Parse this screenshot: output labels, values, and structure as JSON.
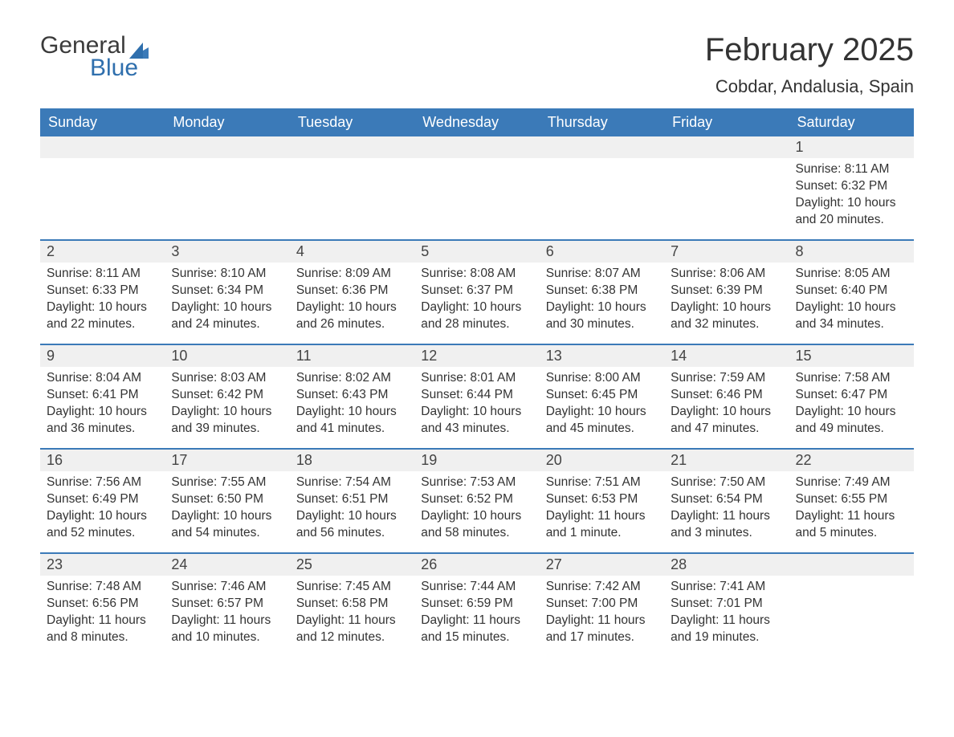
{
  "brand": {
    "word1": "General",
    "word2": "Blue",
    "text_color": "#3b3b3b",
    "accent_color": "#2f6fad"
  },
  "title": "February 2025",
  "location": "Cobdar, Andalusia, Spain",
  "colors": {
    "header_bg": "#3b7ab8",
    "header_text": "#ffffff",
    "row_border": "#3b7ab8",
    "daybar_bg": "#f0f0f0",
    "body_text": "#333333",
    "page_bg": "#ffffff"
  },
  "typography": {
    "title_fontsize": 40,
    "location_fontsize": 22,
    "weekday_fontsize": 18,
    "daynum_fontsize": 18,
    "body_fontsize": 15.5
  },
  "weekdays": [
    "Sunday",
    "Monday",
    "Tuesday",
    "Wednesday",
    "Thursday",
    "Friday",
    "Saturday"
  ],
  "weeks": [
    [
      null,
      null,
      null,
      null,
      null,
      null,
      {
        "n": "1",
        "sunrise": "Sunrise: 8:11 AM",
        "sunset": "Sunset: 6:32 PM",
        "day1": "Daylight: 10 hours",
        "day2": "and 20 minutes."
      }
    ],
    [
      {
        "n": "2",
        "sunrise": "Sunrise: 8:11 AM",
        "sunset": "Sunset: 6:33 PM",
        "day1": "Daylight: 10 hours",
        "day2": "and 22 minutes."
      },
      {
        "n": "3",
        "sunrise": "Sunrise: 8:10 AM",
        "sunset": "Sunset: 6:34 PM",
        "day1": "Daylight: 10 hours",
        "day2": "and 24 minutes."
      },
      {
        "n": "4",
        "sunrise": "Sunrise: 8:09 AM",
        "sunset": "Sunset: 6:36 PM",
        "day1": "Daylight: 10 hours",
        "day2": "and 26 minutes."
      },
      {
        "n": "5",
        "sunrise": "Sunrise: 8:08 AM",
        "sunset": "Sunset: 6:37 PM",
        "day1": "Daylight: 10 hours",
        "day2": "and 28 minutes."
      },
      {
        "n": "6",
        "sunrise": "Sunrise: 8:07 AM",
        "sunset": "Sunset: 6:38 PM",
        "day1": "Daylight: 10 hours",
        "day2": "and 30 minutes."
      },
      {
        "n": "7",
        "sunrise": "Sunrise: 8:06 AM",
        "sunset": "Sunset: 6:39 PM",
        "day1": "Daylight: 10 hours",
        "day2": "and 32 minutes."
      },
      {
        "n": "8",
        "sunrise": "Sunrise: 8:05 AM",
        "sunset": "Sunset: 6:40 PM",
        "day1": "Daylight: 10 hours",
        "day2": "and 34 minutes."
      }
    ],
    [
      {
        "n": "9",
        "sunrise": "Sunrise: 8:04 AM",
        "sunset": "Sunset: 6:41 PM",
        "day1": "Daylight: 10 hours",
        "day2": "and 36 minutes."
      },
      {
        "n": "10",
        "sunrise": "Sunrise: 8:03 AM",
        "sunset": "Sunset: 6:42 PM",
        "day1": "Daylight: 10 hours",
        "day2": "and 39 minutes."
      },
      {
        "n": "11",
        "sunrise": "Sunrise: 8:02 AM",
        "sunset": "Sunset: 6:43 PM",
        "day1": "Daylight: 10 hours",
        "day2": "and 41 minutes."
      },
      {
        "n": "12",
        "sunrise": "Sunrise: 8:01 AM",
        "sunset": "Sunset: 6:44 PM",
        "day1": "Daylight: 10 hours",
        "day2": "and 43 minutes."
      },
      {
        "n": "13",
        "sunrise": "Sunrise: 8:00 AM",
        "sunset": "Sunset: 6:45 PM",
        "day1": "Daylight: 10 hours",
        "day2": "and 45 minutes."
      },
      {
        "n": "14",
        "sunrise": "Sunrise: 7:59 AM",
        "sunset": "Sunset: 6:46 PM",
        "day1": "Daylight: 10 hours",
        "day2": "and 47 minutes."
      },
      {
        "n": "15",
        "sunrise": "Sunrise: 7:58 AM",
        "sunset": "Sunset: 6:47 PM",
        "day1": "Daylight: 10 hours",
        "day2": "and 49 minutes."
      }
    ],
    [
      {
        "n": "16",
        "sunrise": "Sunrise: 7:56 AM",
        "sunset": "Sunset: 6:49 PM",
        "day1": "Daylight: 10 hours",
        "day2": "and 52 minutes."
      },
      {
        "n": "17",
        "sunrise": "Sunrise: 7:55 AM",
        "sunset": "Sunset: 6:50 PM",
        "day1": "Daylight: 10 hours",
        "day2": "and 54 minutes."
      },
      {
        "n": "18",
        "sunrise": "Sunrise: 7:54 AM",
        "sunset": "Sunset: 6:51 PM",
        "day1": "Daylight: 10 hours",
        "day2": "and 56 minutes."
      },
      {
        "n": "19",
        "sunrise": "Sunrise: 7:53 AM",
        "sunset": "Sunset: 6:52 PM",
        "day1": "Daylight: 10 hours",
        "day2": "and 58 minutes."
      },
      {
        "n": "20",
        "sunrise": "Sunrise: 7:51 AM",
        "sunset": "Sunset: 6:53 PM",
        "day1": "Daylight: 11 hours",
        "day2": "and 1 minute."
      },
      {
        "n": "21",
        "sunrise": "Sunrise: 7:50 AM",
        "sunset": "Sunset: 6:54 PM",
        "day1": "Daylight: 11 hours",
        "day2": "and 3 minutes."
      },
      {
        "n": "22",
        "sunrise": "Sunrise: 7:49 AM",
        "sunset": "Sunset: 6:55 PM",
        "day1": "Daylight: 11 hours",
        "day2": "and 5 minutes."
      }
    ],
    [
      {
        "n": "23",
        "sunrise": "Sunrise: 7:48 AM",
        "sunset": "Sunset: 6:56 PM",
        "day1": "Daylight: 11 hours",
        "day2": "and 8 minutes."
      },
      {
        "n": "24",
        "sunrise": "Sunrise: 7:46 AM",
        "sunset": "Sunset: 6:57 PM",
        "day1": "Daylight: 11 hours",
        "day2": "and 10 minutes."
      },
      {
        "n": "25",
        "sunrise": "Sunrise: 7:45 AM",
        "sunset": "Sunset: 6:58 PM",
        "day1": "Daylight: 11 hours",
        "day2": "and 12 minutes."
      },
      {
        "n": "26",
        "sunrise": "Sunrise: 7:44 AM",
        "sunset": "Sunset: 6:59 PM",
        "day1": "Daylight: 11 hours",
        "day2": "and 15 minutes."
      },
      {
        "n": "27",
        "sunrise": "Sunrise: 7:42 AM",
        "sunset": "Sunset: 7:00 PM",
        "day1": "Daylight: 11 hours",
        "day2": "and 17 minutes."
      },
      {
        "n": "28",
        "sunrise": "Sunrise: 7:41 AM",
        "sunset": "Sunset: 7:01 PM",
        "day1": "Daylight: 11 hours",
        "day2": "and 19 minutes."
      },
      null
    ]
  ]
}
